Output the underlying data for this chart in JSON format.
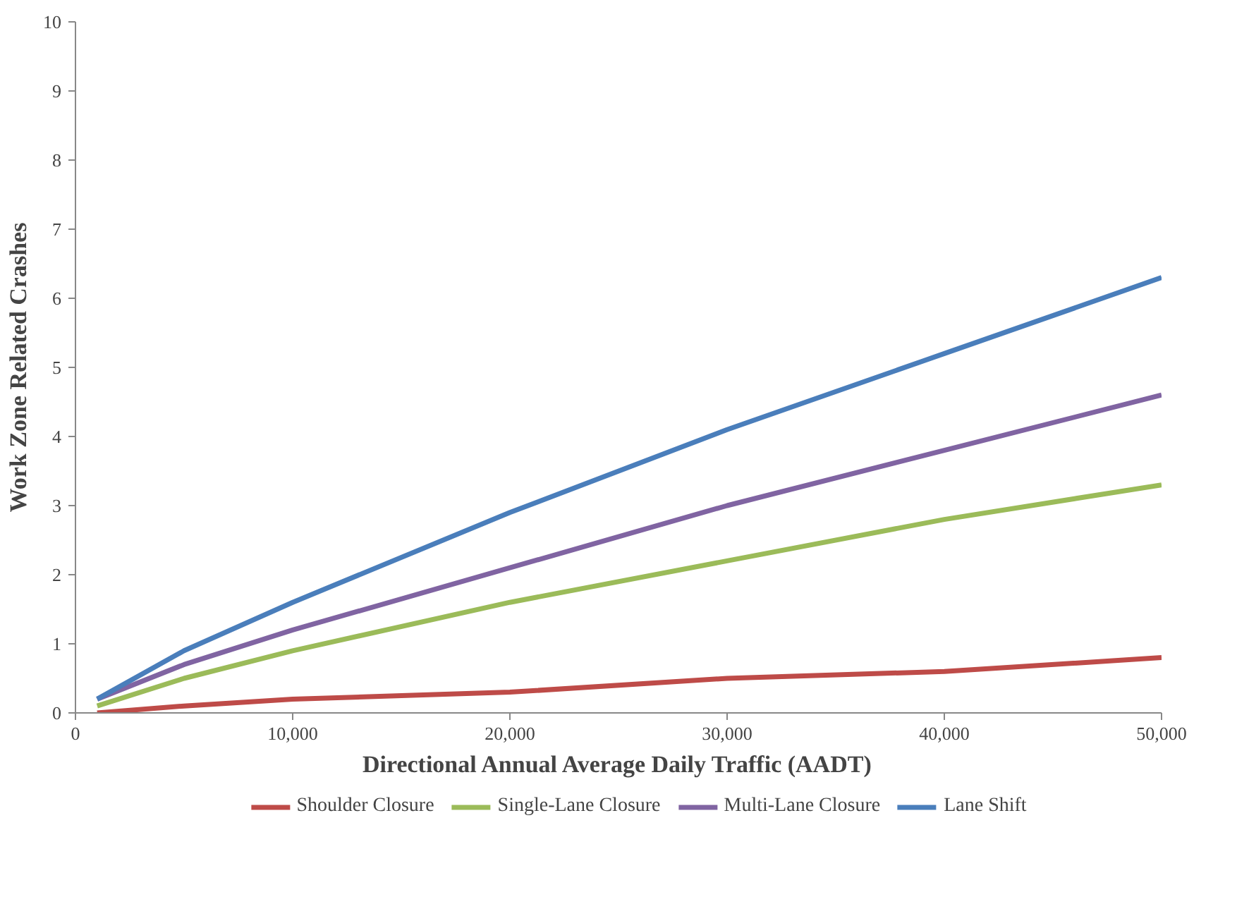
{
  "chart_data": {
    "type": "line",
    "xlabel": "Directional Annual Average Daily Traffic (AADT)",
    "ylabel": "Work Zone Related Crashes",
    "x": [
      1000,
      5000,
      10000,
      20000,
      30000,
      40000,
      50000
    ],
    "series": [
      {
        "name": "Shoulder Closure",
        "color": "#be4b48",
        "values": [
          0.0,
          0.1,
          0.2,
          0.3,
          0.5,
          0.6,
          0.8
        ]
      },
      {
        "name": "Single-Lane Closure",
        "color": "#9bbb59",
        "values": [
          0.1,
          0.5,
          0.9,
          1.6,
          2.2,
          2.8,
          3.3
        ]
      },
      {
        "name": "Multi-Lane Closure",
        "color": "#8064a2",
        "values": [
          0.2,
          0.7,
          1.2,
          2.1,
          3.0,
          3.8,
          4.6
        ]
      },
      {
        "name": "Lane Shift",
        "color": "#4a7ebb",
        "values": [
          0.2,
          0.9,
          1.6,
          2.9,
          4.1,
          5.2,
          6.3
        ]
      }
    ],
    "xlim": [
      0,
      50000
    ],
    "ylim": [
      0,
      10
    ],
    "xticks": [
      0,
      {
        "value": 10000,
        "label": "10,000"
      },
      {
        "value": 20000,
        "label": "20,000"
      },
      {
        "value": 30000,
        "label": "30,000"
      },
      {
        "value": 40000,
        "label": "40,000"
      },
      {
        "value": 50000,
        "label": "50,000"
      }
    ],
    "yticks": [
      0,
      1,
      2,
      3,
      4,
      5,
      6,
      7,
      8,
      9,
      10
    ],
    "grid": false,
    "legend": "bottom",
    "marker": "none",
    "line_style": "solid"
  }
}
